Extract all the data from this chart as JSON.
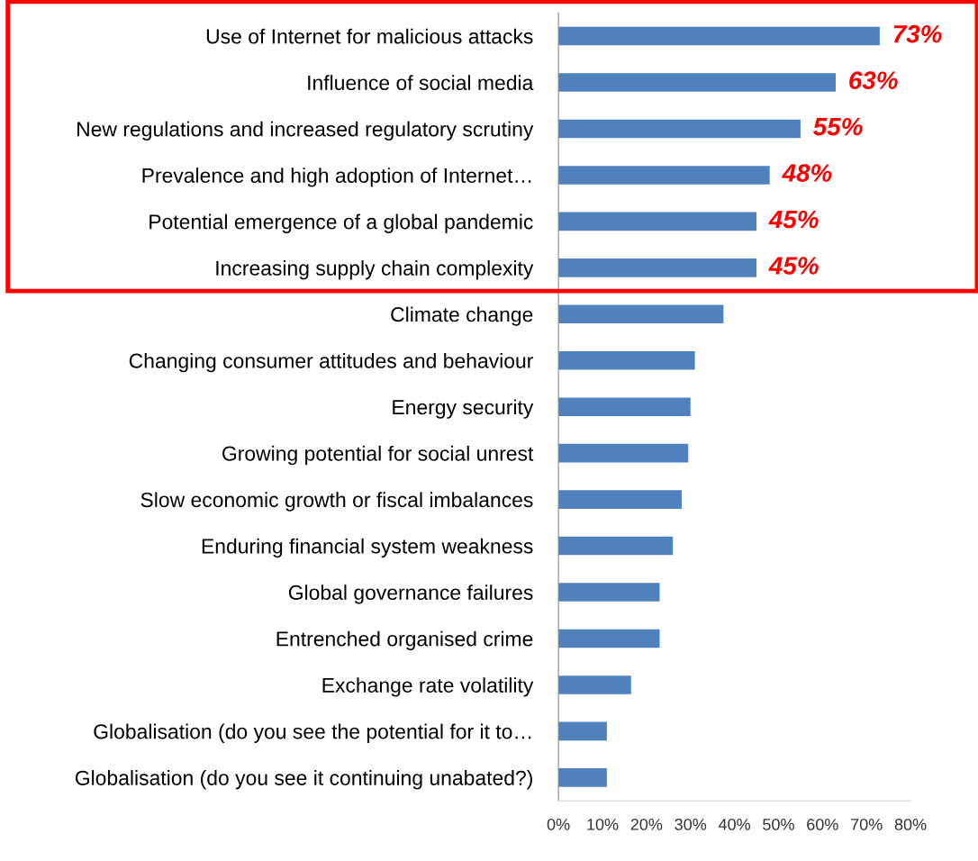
{
  "chart_data": {
    "type": "bar",
    "orientation": "horizontal",
    "categories": [
      "Use of Internet for malicious attacks",
      "Influence of social media",
      "New regulations and increased regulatory scrutiny",
      "Prevalence and high adoption of Internet…",
      "Potential emergence of a global pandemic",
      "Increasing supply chain complexity",
      "Climate change",
      "Changing consumer attitudes and behaviour",
      "Energy security",
      "Growing potential for social unrest",
      "Slow economic growth or fiscal imbalances",
      "Enduring financial system weakness",
      "Global governance failures",
      "Entrenched organised crime",
      "Exchange rate volatility",
      "Globalisation (do you see the potential for it to…",
      "Globalisation (do you see it continuing unabated?)"
    ],
    "values": [
      73,
      63,
      55,
      48,
      45,
      45,
      37.5,
      31,
      30,
      29.5,
      28,
      26,
      23,
      23,
      16.5,
      11,
      11
    ],
    "value_labels": [
      "73%",
      "63%",
      "55%",
      "48%",
      "45%",
      "45%",
      null,
      null,
      null,
      null,
      null,
      null,
      null,
      null,
      null,
      null,
      null
    ],
    "color": "#4f81bd",
    "xlim": [
      0,
      80
    ],
    "xticks": [
      {
        "value": 0,
        "label": "0%"
      },
      {
        "value": 10,
        "label": "10%"
      },
      {
        "value": 20,
        "label": "20%"
      },
      {
        "value": 30,
        "label": "30%"
      },
      {
        "value": 40,
        "label": "40%"
      },
      {
        "value": 50,
        "label": "50%"
      },
      {
        "value": 60,
        "label": "60%"
      },
      {
        "value": 70,
        "label": "70%"
      },
      {
        "value": 80,
        "label": "80%"
      }
    ],
    "grid": false,
    "legend": false
  }
}
